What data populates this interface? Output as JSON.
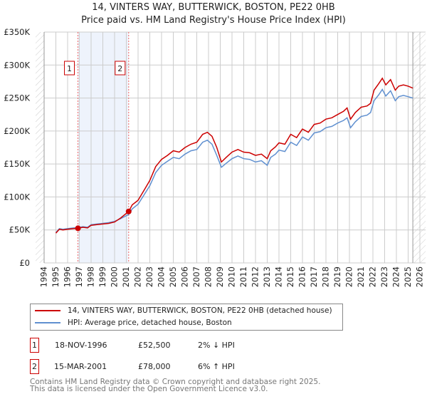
{
  "title": "14, VINTERS WAY, BUTTERWICK, BOSTON, PE22 0HB",
  "subtitle": "Price paid vs. HM Land Registry's House Price Index (HPI)",
  "chart_data": {
    "type": "line",
    "xlim": [
      1994,
      2026
    ],
    "ylim": [
      0,
      350000
    ],
    "x_ticks": [
      "1994",
      "1995",
      "1996",
      "1997",
      "1998",
      "1999",
      "2000",
      "2001",
      "2002",
      "2003",
      "2004",
      "2005",
      "2006",
      "2007",
      "2008",
      "2009",
      "2010",
      "2011",
      "2012",
      "2013",
      "2014",
      "2015",
      "2016",
      "2017",
      "2018",
      "2019",
      "2020",
      "2021",
      "2022",
      "2023",
      "2024",
      "2025",
      "2026"
    ],
    "y_ticks": [
      {
        "v": 0,
        "label": "£0"
      },
      {
        "v": 50000,
        "label": "£50K"
      },
      {
        "v": 100000,
        "label": "£100K"
      },
      {
        "v": 150000,
        "label": "£150K"
      },
      {
        "v": 200000,
        "label": "£200K"
      },
      {
        "v": 250000,
        "label": "£250K"
      },
      {
        "v": 300000,
        "label": "£300K"
      },
      {
        "v": 350000,
        "label": "£350K"
      }
    ],
    "grid": true,
    "shaded_range": [
      1996.88,
      2001.2
    ],
    "data_end": 2025.4,
    "series": [
      {
        "name": "14, VINTERS WAY, BUTTERWICK, BOSTON, PE22 0HB (detached house)",
        "color": "#cc0000",
        "x": [
          1995,
          1995.3,
          1995.6,
          1996,
          1996.5,
          1996.88,
          1997.3,
          1997.7,
          1998,
          1998.5,
          1999,
          1999.5,
          2000,
          2000.5,
          2001.2,
          2001.5,
          2002,
          2002.5,
          2003,
          2003.5,
          2004,
          2004.5,
          2005,
          2005.5,
          2006,
          2006.5,
          2007,
          2007.5,
          2007.9,
          2008.3,
          2008.7,
          2009.1,
          2009.5,
          2010,
          2010.5,
          2011,
          2011.5,
          2012,
          2012.5,
          2013,
          2013.3,
          2013.7,
          2014,
          2014.5,
          2015,
          2015.5,
          2016,
          2016.5,
          2017,
          2017.5,
          2018,
          2018.5,
          2019,
          2019.5,
          2019.8,
          2020.1,
          2020.5,
          2021,
          2021.5,
          2021.8,
          2022.1,
          2022.5,
          2022.8,
          2023.1,
          2023.5,
          2023.9,
          2024.2,
          2024.6,
          2025,
          2025.4
        ],
        "y": [
          45000,
          51000,
          50000,
          51000,
          52000,
          52500,
          54000,
          53000,
          57000,
          58000,
          59000,
          60000,
          62000,
          68000,
          78000,
          88000,
          95000,
          110000,
          125000,
          146000,
          157000,
          163000,
          170000,
          168000,
          175000,
          180000,
          183000,
          195000,
          198000,
          192000,
          175000,
          153000,
          160000,
          168000,
          172000,
          168000,
          167000,
          163000,
          165000,
          158000,
          170000,
          176000,
          182000,
          180000,
          195000,
          190000,
          203000,
          198000,
          210000,
          212000,
          218000,
          220000,
          225000,
          230000,
          235000,
          218000,
          228000,
          236000,
          238000,
          242000,
          262000,
          272000,
          280000,
          270000,
          278000,
          262000,
          268000,
          270000,
          268000,
          265000
        ]
      },
      {
        "name": "HPI: Average price, detached house, Boston",
        "color": "#6090d0",
        "x": [
          1995,
          1995.3,
          1995.6,
          1996,
          1996.5,
          1996.88,
          1997.3,
          1997.7,
          1998,
          1998.5,
          1999,
          1999.5,
          2000,
          2000.5,
          2001.2,
          2001.5,
          2002,
          2002.5,
          2003,
          2003.5,
          2004,
          2004.5,
          2005,
          2005.5,
          2006,
          2006.5,
          2007,
          2007.5,
          2007.9,
          2008.3,
          2008.7,
          2009.1,
          2009.5,
          2010,
          2010.5,
          2011,
          2011.5,
          2012,
          2012.5,
          2013,
          2013.3,
          2013.7,
          2014,
          2014.5,
          2015,
          2015.5,
          2016,
          2016.5,
          2017,
          2017.5,
          2018,
          2018.5,
          2019,
          2019.5,
          2019.8,
          2020.1,
          2020.5,
          2021,
          2021.5,
          2021.8,
          2022.1,
          2022.5,
          2022.8,
          2023.1,
          2023.5,
          2023.9,
          2024.2,
          2024.6,
          2025,
          2025.4
        ],
        "y": [
          46000,
          52000,
          51000,
          52000,
          53000,
          53500,
          55000,
          54000,
          58000,
          59000,
          60000,
          61000,
          63000,
          67000,
          73500,
          82000,
          89000,
          103000,
          117000,
          137000,
          148000,
          154000,
          160000,
          158000,
          165000,
          170000,
          172000,
          183000,
          186000,
          180000,
          163000,
          145000,
          151000,
          158000,
          162000,
          158000,
          157000,
          153000,
          155000,
          148000,
          160000,
          165000,
          171000,
          169000,
          183000,
          178000,
          191000,
          186000,
          197000,
          199000,
          205000,
          207000,
          212000,
          216000,
          220000,
          205000,
          214000,
          222000,
          224000,
          228000,
          246000,
          255000,
          263000,
          253000,
          261000,
          246000,
          252000,
          254000,
          252000,
          250000
        ]
      }
    ],
    "annotations": [
      {
        "label": "1",
        "x": 1996.88,
        "y": 52500
      },
      {
        "label": "2",
        "x": 2001.2,
        "y": 78000
      }
    ]
  },
  "legend": {
    "red": "14, VINTERS WAY, BUTTERWICK, BOSTON, PE22 0HB (detached house)",
    "blue": "HPI: Average price, detached house, Boston"
  },
  "sales": [
    {
      "num": "1",
      "date": "18-NOV-1996",
      "price": "£52,500",
      "hpi": "2% ↓ HPI"
    },
    {
      "num": "2",
      "date": "15-MAR-2001",
      "price": "£78,000",
      "hpi": "6% ↑ HPI"
    }
  ],
  "footer": [
    "Contains HM Land Registry data © Crown copyright and database right 2025.",
    "This data is licensed under the Open Government Licence v3.0."
  ]
}
